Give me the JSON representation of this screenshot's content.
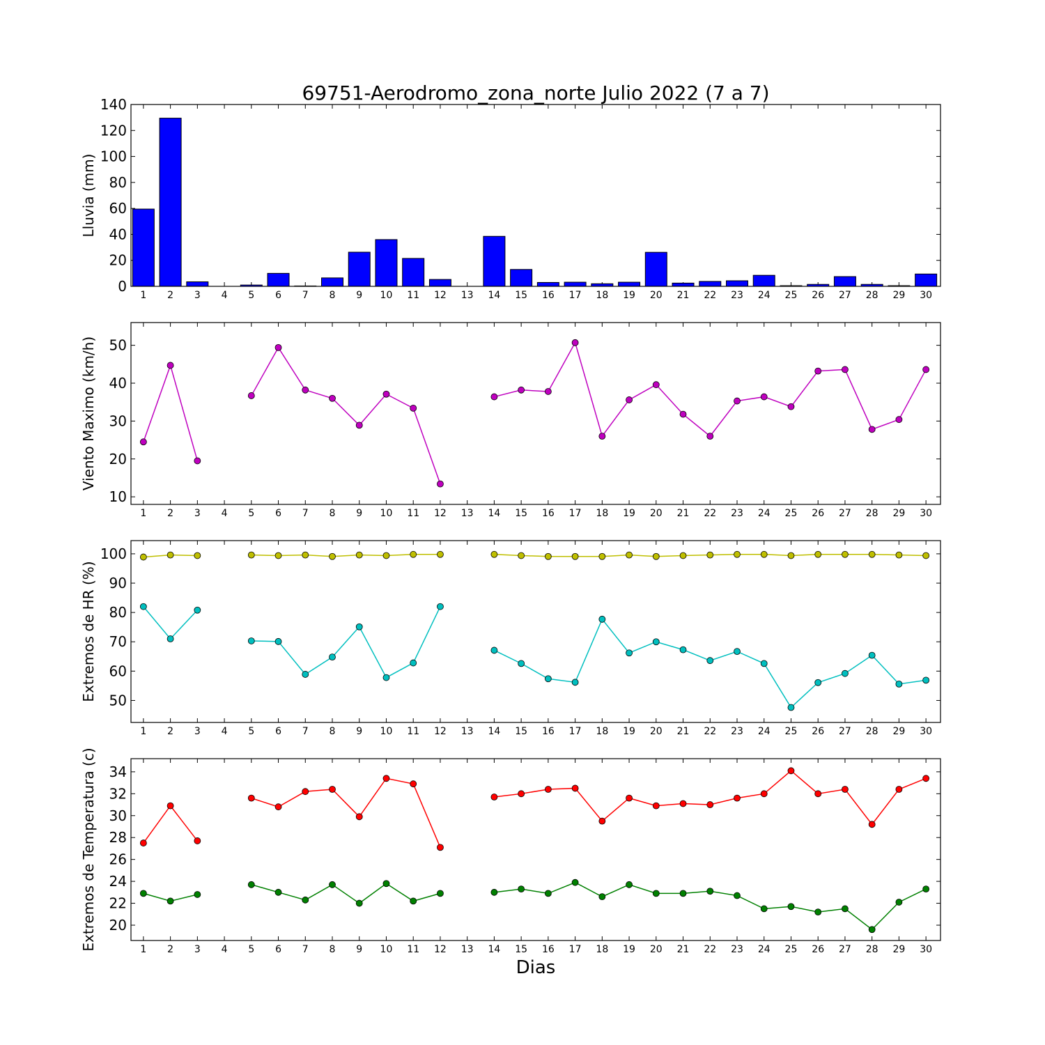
{
  "chart_data": [
    {
      "type": "bar",
      "title": "69751-Aerodromo_zona_norte Julio 2022  (7 a 7)",
      "ylabel": "Lluvia (mm)",
      "xlabel": "",
      "ylim": [
        0,
        140
      ],
      "yticks": [
        0,
        20,
        40,
        60,
        80,
        100,
        120,
        140
      ],
      "categories": [
        "1",
        "2",
        "3",
        "4",
        "5",
        "6",
        "7",
        "8",
        "9",
        "10",
        "11",
        "12",
        "13",
        "14",
        "15",
        "16",
        "17",
        "18",
        "19",
        "20",
        "21",
        "22",
        "23",
        "24",
        "25",
        "26",
        "27",
        "28",
        "29",
        "30"
      ],
      "series": [
        {
          "color": "#0000ff",
          "values": [
            59.5,
            129.5,
            3.5,
            0,
            1,
            10,
            0.3,
            6.5,
            26.3,
            36,
            21.5,
            5.3,
            0,
            38.5,
            13,
            3,
            3.2,
            2,
            3.2,
            26.2,
            2.5,
            3.8,
            4.3,
            8.5,
            0.5,
            1.5,
            7.5,
            1.5,
            0.5,
            9.5
          ]
        }
      ]
    },
    {
      "type": "line",
      "ylabel": "Viento Maximo (km/h)",
      "xlabel": "",
      "ylim": [
        8,
        56
      ],
      "yticks": [
        10,
        20,
        30,
        40,
        50
      ],
      "categories": [
        "1",
        "2",
        "3",
        "4",
        "5",
        "6",
        "7",
        "8",
        "9",
        "10",
        "11",
        "12",
        "13",
        "14",
        "15",
        "16",
        "17",
        "18",
        "19",
        "20",
        "21",
        "22",
        "23",
        "24",
        "25",
        "26",
        "27",
        "28",
        "29",
        "30"
      ],
      "series": [
        {
          "color": "#bf00bf",
          "values": [
            24.5,
            44.7,
            19.5,
            null,
            36.7,
            49.4,
            38.2,
            36,
            28.9,
            37.1,
            33.4,
            13.4,
            null,
            36.4,
            38.2,
            37.8,
            50.7,
            26,
            35.6,
            39.6,
            31.8,
            26,
            35.3,
            36.4,
            33.8,
            43.2,
            43.6,
            27.8,
            30.4,
            43.6
          ]
        }
      ]
    },
    {
      "type": "line",
      "ylabel": "Extremos de HR (%)",
      "xlabel": "",
      "ylim": [
        42.5,
        104.5
      ],
      "yticks": [
        50,
        60,
        70,
        80,
        90,
        100
      ],
      "categories": [
        "1",
        "2",
        "3",
        "4",
        "5",
        "6",
        "7",
        "8",
        "9",
        "10",
        "11",
        "12",
        "13",
        "14",
        "15",
        "16",
        "17",
        "18",
        "19",
        "20",
        "21",
        "22",
        "23",
        "24",
        "25",
        "26",
        "27",
        "28",
        "29",
        "30"
      ],
      "series": [
        {
          "color": "#bfbf00",
          "values": [
            98.9,
            99.6,
            99.4,
            null,
            99.6,
            99.4,
            99.6,
            99.1,
            99.6,
            99.4,
            99.8,
            99.8,
            null,
            99.8,
            99.4,
            99.1,
            99.1,
            99.1,
            99.6,
            99.1,
            99.4,
            99.6,
            99.8,
            99.8,
            99.4,
            99.8,
            99.8,
            99.8,
            99.6,
            99.4
          ]
        },
        {
          "color": "#00bfbf",
          "values": [
            82,
            71,
            80.8,
            null,
            70.3,
            70.1,
            58.9,
            64.8,
            75.1,
            57.8,
            62.8,
            82,
            null,
            67.1,
            62.6,
            57.4,
            56.2,
            77.7,
            66.2,
            70,
            67.3,
            63.6,
            66.7,
            62.6,
            47.6,
            56.1,
            59.2,
            65.4,
            55.6,
            56.9
          ]
        }
      ]
    },
    {
      "type": "line",
      "ylabel": "Extremos de Temperatura (c)",
      "xlabel": "Dias",
      "ylim": [
        18.6,
        35.2
      ],
      "yticks": [
        20,
        22,
        24,
        26,
        28,
        30,
        32,
        34
      ],
      "categories": [
        "1",
        "2",
        "3",
        "4",
        "5",
        "6",
        "7",
        "8",
        "9",
        "10",
        "11",
        "12",
        "13",
        "14",
        "15",
        "16",
        "17",
        "18",
        "19",
        "20",
        "21",
        "22",
        "23",
        "24",
        "25",
        "26",
        "27",
        "28",
        "29",
        "30"
      ],
      "series": [
        {
          "color": "#ff0000",
          "values": [
            27.5,
            30.9,
            27.7,
            null,
            31.6,
            30.8,
            32.2,
            32.4,
            29.9,
            33.4,
            32.9,
            27.1,
            null,
            31.7,
            32,
            32.4,
            32.5,
            29.5,
            31.6,
            30.9,
            31.1,
            31,
            31.6,
            32,
            34.1,
            32,
            32.4,
            29.2,
            32.4,
            33.4
          ]
        },
        {
          "color": "#008000",
          "values": [
            22.9,
            22.2,
            22.8,
            null,
            23.7,
            23,
            22.3,
            23.7,
            22,
            23.8,
            22.2,
            22.9,
            null,
            23,
            23.3,
            22.9,
            23.9,
            22.6,
            23.7,
            22.9,
            22.9,
            23.1,
            22.7,
            21.5,
            21.7,
            21.2,
            21.5,
            19.6,
            22.1,
            23.3
          ]
        }
      ]
    }
  ]
}
